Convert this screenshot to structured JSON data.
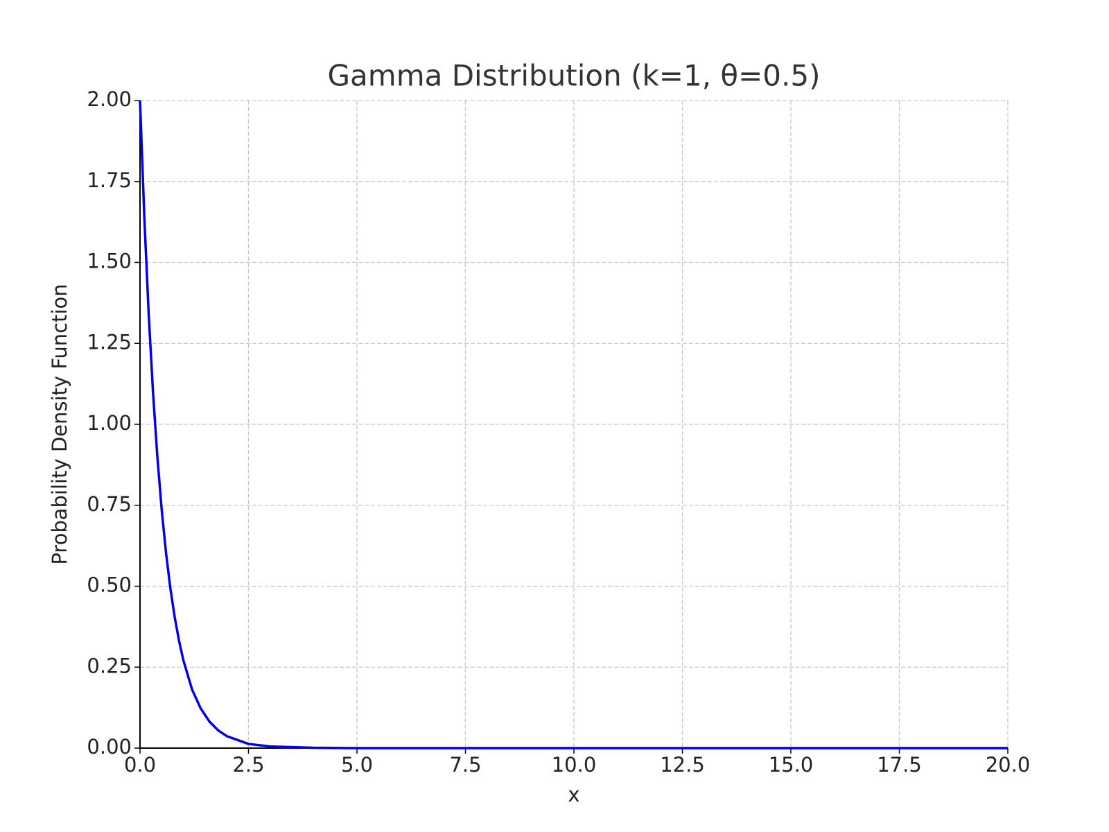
{
  "chart_data": {
    "type": "line",
    "title": "Gamma Distribution (k=1, θ=0.5)",
    "xlabel": "x",
    "ylabel": "Probability Density Function",
    "x": [
      0,
      0.1,
      0.2,
      0.3,
      0.4,
      0.5,
      0.6,
      0.7,
      0.8,
      0.9,
      1.0,
      1.2,
      1.4,
      1.6,
      1.8,
      2.0,
      2.5,
      3.0,
      4.0,
      5.0,
      7.5,
      10.0,
      12.5,
      15.0,
      17.5,
      20.0
    ],
    "series": [
      {
        "color": "#0000ee",
        "values": [
          2.0,
          1.637,
          1.341,
          1.098,
          0.899,
          0.736,
          0.602,
          0.493,
          0.404,
          0.331,
          0.271,
          0.181,
          0.122,
          0.082,
          0.055,
          0.037,
          0.013,
          0.005,
          0.001,
          0,
          0,
          0,
          0,
          0,
          0,
          0
        ]
      }
    ],
    "xlim": [
      0,
      20
    ],
    "ylim": [
      0,
      2
    ],
    "xticks": [
      {
        "value": 0,
        "label": "0.0"
      },
      2.5,
      {
        "value": 5,
        "label": "5.0"
      },
      7.5,
      {
        "value": 10,
        "label": "10.0"
      },
      12.5,
      {
        "value": 15,
        "label": "15.0"
      },
      17.5,
      {
        "value": 20,
        "label": "20.0"
      }
    ],
    "yticks": [
      {
        "value": 0,
        "label": "0.00"
      },
      {
        "value": 0.25,
        "label": "0.25"
      },
      {
        "value": 0.5,
        "label": "0.50"
      },
      {
        "value": 0.75,
        "label": "0.75"
      },
      {
        "value": 1,
        "label": "1.00"
      },
      {
        "value": 1.25,
        "label": "1.25"
      },
      {
        "value": 1.5,
        "label": "1.50"
      },
      {
        "value": 1.75,
        "label": "1.75"
      },
      {
        "value": 2,
        "label": "2.00"
      }
    ],
    "grid": true
  }
}
